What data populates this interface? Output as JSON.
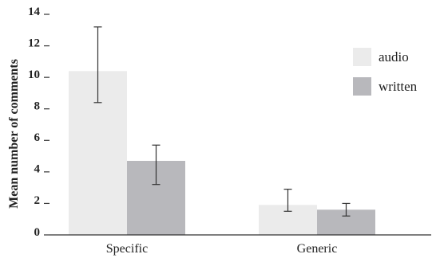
{
  "chart_data": {
    "type": "bar",
    "categories": [
      "Specific",
      "Generic"
    ],
    "series": [
      {
        "name": "audio",
        "values": [
          10.4,
          1.9
        ],
        "error_low": [
          8.4,
          1.5
        ],
        "error_high": [
          13.2,
          2.9
        ],
        "color": "#ebebeb"
      },
      {
        "name": "written",
        "values": [
          4.7,
          1.6
        ],
        "error_low": [
          3.2,
          1.2
        ],
        "error_high": [
          5.7,
          2.0
        ],
        "color": "#b8b8bc"
      }
    ],
    "title": "",
    "xlabel": "",
    "ylabel": "Mean number of comments",
    "ylim": [
      0,
      14
    ],
    "yticks": [
      0,
      2,
      4,
      6,
      8,
      10,
      12,
      14
    ],
    "grid": false,
    "legend": "top-right"
  }
}
